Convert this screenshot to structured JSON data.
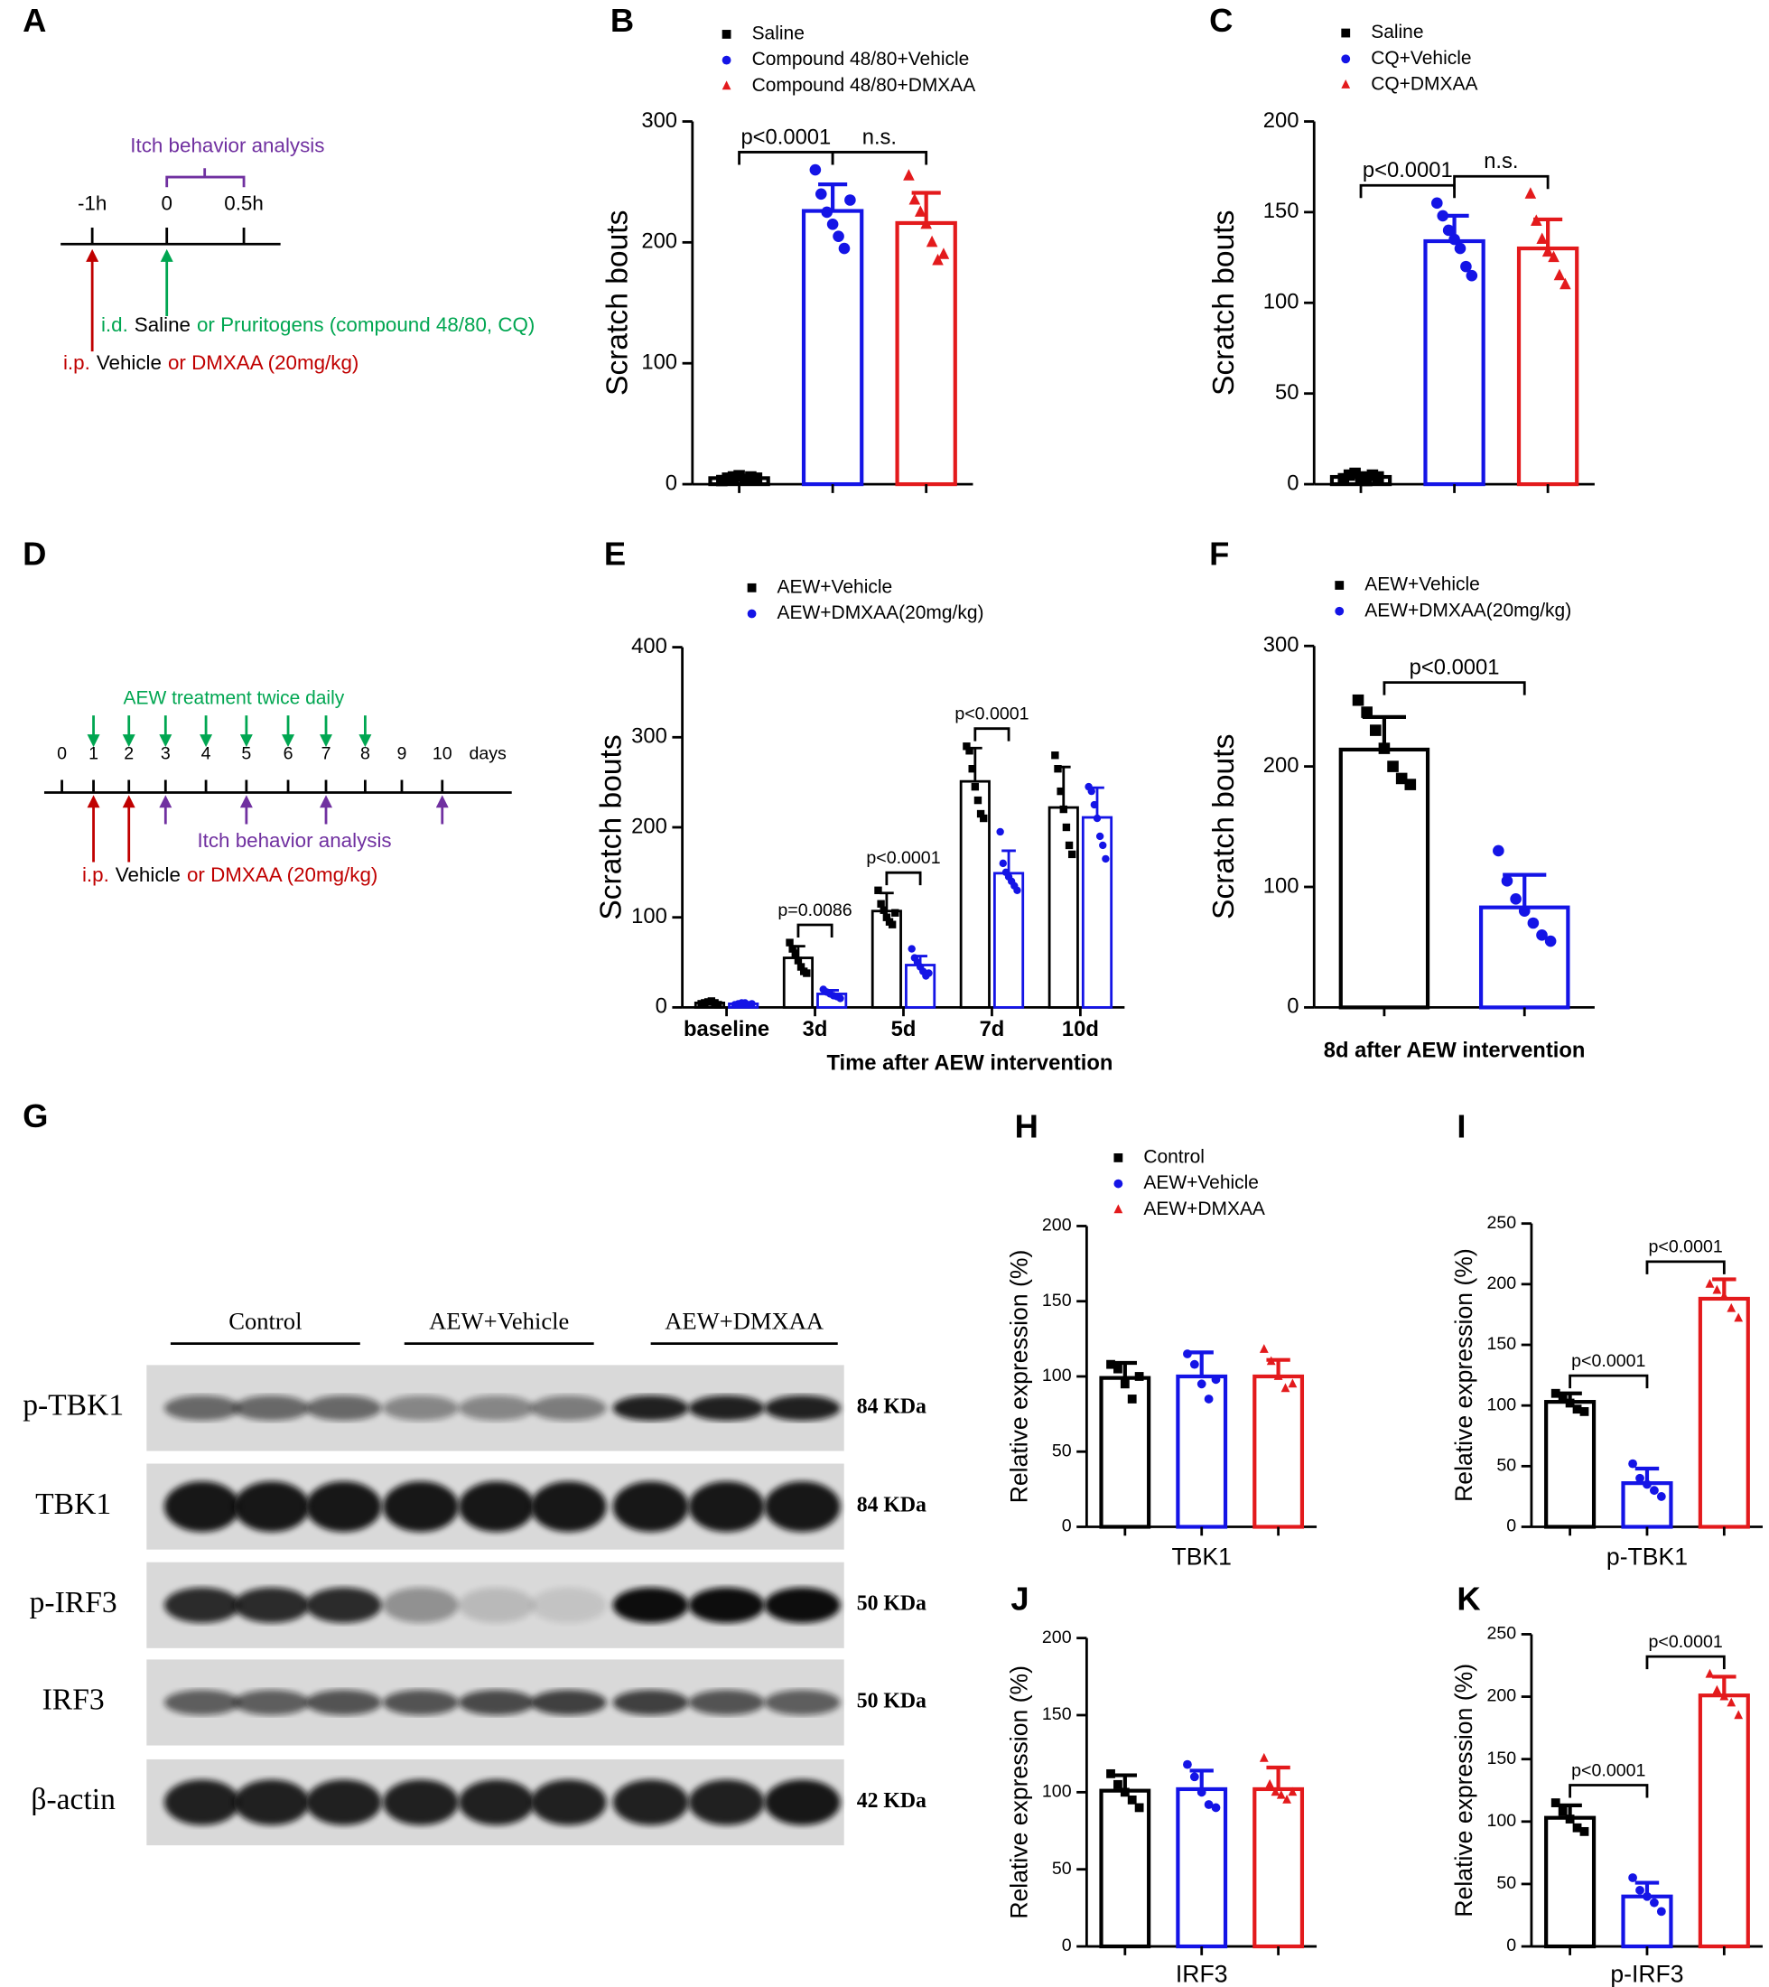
{
  "chart_data": [
    {
      "type": "bar",
      "panel": "B",
      "ylabel": "Scratch bouts",
      "ylim": [
        0,
        300
      ],
      "yticks": [
        0,
        100,
        200,
        300
      ],
      "legend": true,
      "series": [
        {
          "name": "Saline",
          "color": "#000000",
          "marker": "square",
          "values": [
            5
          ],
          "errors": [
            2
          ],
          "points": [
            [
              3,
              5,
              6,
              7,
              4,
              6,
              5
            ]
          ]
        },
        {
          "name": "Compound 48/80+Vehicle",
          "color": "#1414e6",
          "marker": "circle",
          "values": [
            226
          ],
          "errors": [
            22
          ],
          "points": [
            [
              260,
              240,
              225,
              215,
              205,
              195,
              235
            ]
          ]
        },
        {
          "name": "Compound 48/80+DMXAA",
          "color": "#e31a1c",
          "marker": "triangle",
          "values": [
            216
          ],
          "errors": [
            25
          ],
          "points": [
            [
              255,
              235,
              225,
              215,
              200,
              185,
              190
            ]
          ]
        }
      ],
      "comparisons": [
        {
          "label": "p<0.0001",
          "series": [
            0,
            1
          ]
        },
        {
          "label": "n.s.",
          "series": [
            1,
            2
          ]
        }
      ]
    },
    {
      "type": "bar",
      "panel": "C",
      "ylabel": "Scratch bouts",
      "ylim": [
        0,
        200
      ],
      "yticks": [
        0,
        50,
        100,
        150,
        200
      ],
      "legend": true,
      "series": [
        {
          "name": "Saline",
          "color": "#000000",
          "marker": "square",
          "values": [
            4
          ],
          "errors": [
            2
          ],
          "points": [
            [
              3,
              5,
              6,
              4,
              2,
              5,
              4
            ]
          ]
        },
        {
          "name": "CQ+Vehicle",
          "color": "#1414e6",
          "marker": "circle",
          "values": [
            134
          ],
          "errors": [
            14
          ],
          "points": [
            [
              155,
              148,
              140,
              135,
              130,
              120,
              115
            ]
          ]
        },
        {
          "name": "CQ+DMXAA",
          "color": "#e31a1c",
          "marker": "triangle",
          "values": [
            130
          ],
          "errors": [
            16
          ],
          "points": [
            [
              160,
              145,
              135,
              128,
              125,
              115,
              110
            ]
          ]
        }
      ],
      "comparisons": [
        {
          "label": "p<0.0001",
          "series": [
            0,
            1
          ]
        },
        {
          "label": "n.s.",
          "series": [
            1,
            2
          ]
        }
      ]
    },
    {
      "type": "bar",
      "panel": "E",
      "ylabel": "Scratch bouts",
      "xlabel": "Time after AEW intervention",
      "ylim": [
        0,
        400
      ],
      "yticks": [
        0,
        100,
        200,
        300,
        400
      ],
      "legend": true,
      "categories": [
        "baseline",
        "3d",
        "5d",
        "7d",
        "10d"
      ],
      "series": [
        {
          "name": "AEW+Vehicle",
          "color": "#000000",
          "marker": "square",
          "values": [
            5,
            55,
            107,
            251,
            222
          ],
          "errors": [
            2,
            13,
            20,
            37,
            45
          ],
          "points": [
            [
              4,
              5,
              6,
              7,
              5,
              3
            ],
            [
              72,
              65,
              60,
              52,
              45,
              40,
              38
            ],
            [
              130,
              115,
              108,
              100,
              95,
              92,
              105
            ],
            [
              290,
              285,
              265,
              245,
              230,
              215,
              210
            ],
            [
              280,
              265,
              240,
              220,
              200,
              180,
              170
            ]
          ]
        },
        {
          "name": "AEW+DMXAA(20mg/kg)",
          "color": "#1414e6",
          "marker": "circle",
          "values": [
            4,
            15,
            47,
            149,
            211
          ],
          "errors": [
            1,
            4,
            10,
            25,
            33
          ],
          "points": [
            [
              3,
              4,
              5,
              5,
              3,
              4
            ],
            [
              20,
              17,
              15,
              13,
              12,
              10
            ],
            [
              65,
              55,
              50,
              45,
              40,
              35,
              38
            ],
            [
              195,
              160,
              150,
              145,
              140,
              135,
              130
            ],
            [
              245,
              240,
              225,
              210,
              190,
              180,
              165
            ]
          ]
        }
      ],
      "comparisons": [
        {
          "label": "p=0.0086",
          "category": 1,
          "series": [
            0,
            1
          ]
        },
        {
          "label": "p<0.0001",
          "category": 2,
          "series": [
            0,
            1
          ]
        },
        {
          "label": "p<0.0001",
          "category": 3,
          "series": [
            0,
            1
          ]
        }
      ]
    },
    {
      "type": "bar",
      "panel": "F",
      "ylabel": "Scratch bouts",
      "xlabel": "8d after AEW intervention",
      "ylim": [
        0,
        300
      ],
      "yticks": [
        0,
        100,
        200,
        300
      ],
      "legend": true,
      "series": [
        {
          "name": "AEW+Vehicle",
          "color": "#000000",
          "marker": "square",
          "values": [
            214
          ],
          "errors": [
            27
          ],
          "points": [
            [
              255,
              245,
              230,
              215,
              200,
              190,
              185
            ]
          ]
        },
        {
          "name": "AEW+DMXAA(20mg/kg)",
          "color": "#1414e6",
          "marker": "circle",
          "values": [
            83
          ],
          "errors": [
            27
          ],
          "points": [
            [
              130,
              105,
              90,
              80,
              70,
              60,
              55
            ]
          ]
        }
      ],
      "comparisons": [
        {
          "label": "p<0.0001",
          "series": [
            0,
            1
          ]
        }
      ]
    },
    {
      "type": "bar",
      "panel": "H",
      "ylabel": "Relative expression (%)",
      "xlabel": "TBK1",
      "ylim": [
        0,
        200
      ],
      "yticks": [
        0,
        50,
        100,
        150,
        200
      ],
      "legend": true,
      "series": [
        {
          "name": "Control",
          "color": "#000000",
          "marker": "square",
          "values": [
            99
          ],
          "errors": [
            10
          ],
          "points": [
            [
              108,
              105,
              95,
              85,
              100
            ]
          ]
        },
        {
          "name": "AEW+Vehicle",
          "color": "#1414e6",
          "marker": "circle",
          "values": [
            100
          ],
          "errors": [
            16
          ],
          "points": [
            [
              115,
              108,
              95,
              85,
              98
            ]
          ]
        },
        {
          "name": "AEW+DMXAA",
          "color": "#e31a1c",
          "marker": "triangle",
          "values": [
            100
          ],
          "errors": [
            11
          ],
          "points": [
            [
              118,
              110,
              100,
              92,
              95
            ]
          ]
        }
      ],
      "comparisons": []
    },
    {
      "type": "bar",
      "panel": "I",
      "ylabel": "Relative expression (%)",
      "xlabel": "p-TBK1",
      "ylim": [
        0,
        250
      ],
      "yticks": [
        0,
        50,
        100,
        150,
        200,
        250
      ],
      "legend": false,
      "series": [
        {
          "name": "Control",
          "color": "#000000",
          "marker": "square",
          "values": [
            103
          ],
          "errors": [
            7
          ],
          "points": [
            [
              110,
              107,
              102,
              97,
              95
            ]
          ]
        },
        {
          "name": "AEW+Vehicle",
          "color": "#1414e6",
          "marker": "circle",
          "values": [
            36
          ],
          "errors": [
            12
          ],
          "points": [
            [
              52,
              40,
              35,
              30,
              25
            ]
          ]
        },
        {
          "name": "AEW+DMXAA",
          "color": "#e31a1c",
          "marker": "triangle",
          "values": [
            188
          ],
          "errors": [
            16
          ],
          "points": [
            [
              200,
              195,
              190,
              180,
              172
            ]
          ]
        }
      ],
      "comparisons": [
        {
          "label": "p<0.0001",
          "series": [
            0,
            1
          ]
        },
        {
          "label": "p<0.0001",
          "series": [
            1,
            2
          ]
        }
      ]
    },
    {
      "type": "bar",
      "panel": "J",
      "ylabel": "Relative expression (%)",
      "xlabel": "IRF3",
      "ylim": [
        0,
        200
      ],
      "yticks": [
        0,
        50,
        100,
        150,
        200
      ],
      "legend": false,
      "series": [
        {
          "name": "Control",
          "color": "#000000",
          "marker": "square",
          "values": [
            101
          ],
          "errors": [
            10
          ],
          "points": [
            [
              112,
              105,
              100,
              95,
              90
            ]
          ]
        },
        {
          "name": "AEW+Vehicle",
          "color": "#1414e6",
          "marker": "circle",
          "values": [
            102
          ],
          "errors": [
            12
          ],
          "points": [
            [
              118,
              110,
              100,
              92,
              90
            ]
          ]
        },
        {
          "name": "AEW+DMXAA",
          "color": "#e31a1c",
          "marker": "triangle",
          "values": [
            102
          ],
          "errors": [
            14
          ],
          "points": [
            [
              122,
              105,
              100,
              98,
              95,
              100
            ]
          ]
        }
      ],
      "comparisons": []
    },
    {
      "type": "bar",
      "panel": "K",
      "ylabel": "Relative expression (%)",
      "xlabel": "p-IRF3",
      "ylim": [
        0,
        250
      ],
      "yticks": [
        0,
        50,
        100,
        150,
        200,
        250
      ],
      "legend": false,
      "series": [
        {
          "name": "Control",
          "color": "#000000",
          "marker": "square",
          "values": [
            103
          ],
          "errors": [
            10
          ],
          "points": [
            [
              115,
              108,
              102,
              95,
              92
            ]
          ]
        },
        {
          "name": "AEW+Vehicle",
          "color": "#1414e6",
          "marker": "circle",
          "values": [
            40
          ],
          "errors": [
            11
          ],
          "points": [
            [
              55,
              45,
              40,
              35,
              28
            ]
          ]
        },
        {
          "name": "AEW+DMXAA",
          "color": "#e31a1c",
          "marker": "triangle",
          "values": [
            201
          ],
          "errors": [
            15
          ],
          "points": [
            [
              218,
              205,
              200,
              195,
              185
            ]
          ]
        }
      ],
      "comparisons": [
        {
          "label": "p<0.0001",
          "series": [
            0,
            1
          ]
        },
        {
          "label": "p<0.0001",
          "series": [
            1,
            2
          ]
        }
      ]
    }
  ],
  "diagram_a": {
    "label": "A",
    "title": "Itch behavior analysis",
    "times": [
      "-1h",
      "0",
      "0.5h"
    ],
    "id_route": "i.d.",
    "id_control": "Saline",
    "id_treatment": "or Pruritogens (compound 48/80, CQ)",
    "ip_route": "i.p.",
    "ip_control": "Vehicle",
    "ip_treatment": "or DMXAA (20mg/kg)"
  },
  "diagram_d": {
    "label": "D",
    "treatment": "AEW treatment twice daily",
    "days": [
      "0",
      "1",
      "2",
      "3",
      "4",
      "5",
      "6",
      "7",
      "8",
      "9",
      "10"
    ],
    "unit": "days",
    "analysis": "Itch behavior analysis",
    "ip_route": "i.p.",
    "ip_control": "Vehicle",
    "ip_treatment": "or DMXAA (20mg/kg)"
  },
  "blot_g": {
    "label": "G",
    "groups": [
      "Control",
      "AEW+Vehicle",
      "AEW+DMXAA"
    ],
    "rows": [
      {
        "protein": "p-TBK1",
        "size": "84 KDa"
      },
      {
        "protein": "TBK1",
        "size": "84 KDa"
      },
      {
        "protein": "p-IRF3",
        "size": "50 KDa"
      },
      {
        "protein": "IRF3",
        "size": "50 KDa"
      },
      {
        "protein": "β-actin",
        "size": "42 KDa"
      }
    ]
  }
}
